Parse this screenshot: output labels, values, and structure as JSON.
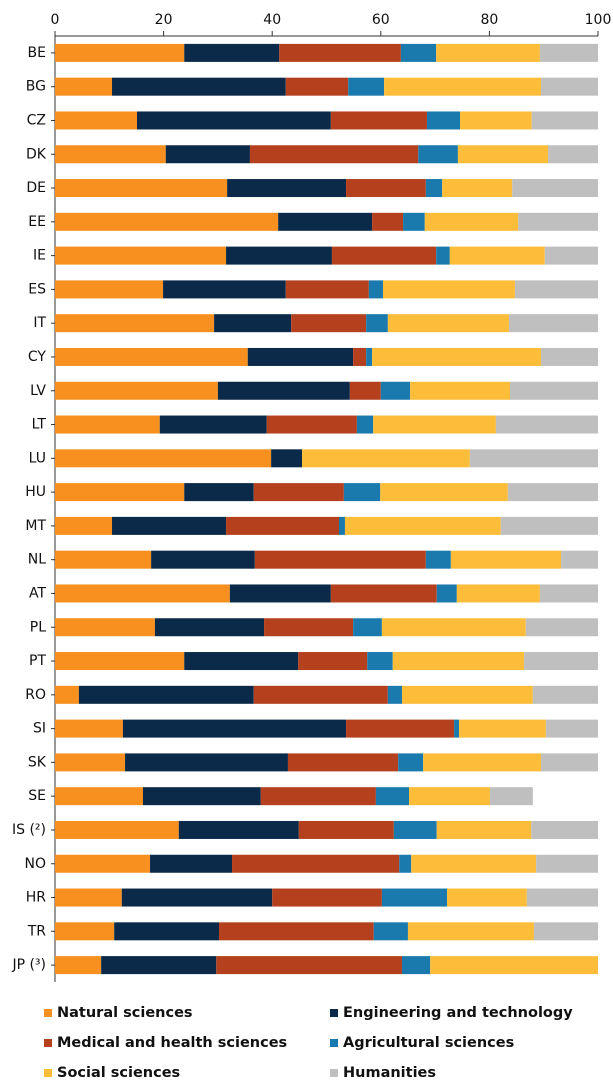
{
  "chart_data": {
    "type": "stacked-barh",
    "categories": [
      "BE",
      "BG",
      "CZ",
      "DK",
      "DE",
      "EE",
      "IE",
      "ES",
      "IT",
      "CY",
      "LV",
      "LT",
      "LU",
      "HU",
      "MT",
      "NL",
      "AT",
      "PL",
      "PT",
      "RO",
      "SI",
      "SK",
      "SE",
      "IS (²)",
      "NO",
      "HR",
      "TR",
      "JP (³)"
    ],
    "series": [
      {
        "name": "Natural sciences",
        "color": "#f7901e",
        "values": [
          23.8,
          10.5,
          15.1,
          20.4,
          31.7,
          41.1,
          31.5,
          19.9,
          29.3,
          35.5,
          30.0,
          19.3,
          39.8,
          23.8,
          10.5,
          17.7,
          32.2,
          18.4,
          23.8,
          4.4,
          12.5,
          12.9,
          16.2,
          22.8,
          17.5,
          12.3,
          10.9,
          8.5
        ]
      },
      {
        "name": "Engineering and technology",
        "color": "#0b2a4a",
        "values": [
          17.5,
          32.0,
          35.7,
          15.5,
          21.9,
          17.3,
          19.5,
          22.6,
          14.2,
          19.4,
          24.3,
          19.7,
          5.7,
          12.8,
          21.0,
          19.1,
          18.6,
          20.1,
          21.0,
          32.2,
          41.1,
          30.0,
          21.7,
          22.1,
          15.1,
          27.7,
          19.3,
          21.2
        ]
      },
      {
        "name": "Medical and health sciences",
        "color": "#b5401d",
        "values": [
          22.4,
          11.5,
          17.7,
          31.0,
          14.7,
          5.7,
          19.2,
          15.3,
          13.8,
          2.4,
          5.7,
          16.6,
          0,
          16.6,
          20.8,
          31.5,
          19.5,
          16.4,
          12.7,
          24.7,
          19.9,
          20.3,
          21.2,
          17.5,
          30.8,
          20.2,
          28.5,
          34.2
        ]
      },
      {
        "name": "Agricultural sciences",
        "color": "#1a7aad",
        "values": [
          6.5,
          6.6,
          6.1,
          7.3,
          3.0,
          4.0,
          2.5,
          2.6,
          4.0,
          1.1,
          5.4,
          3.0,
          0,
          6.7,
          1.1,
          4.6,
          3.7,
          5.3,
          4.7,
          2.6,
          0.9,
          4.6,
          6.1,
          7.9,
          2.2,
          12.0,
          6.3,
          5.2
        ]
      },
      {
        "name": "Social sciences",
        "color": "#fdbd39",
        "values": [
          19.1,
          28.9,
          13.2,
          16.6,
          12.9,
          17.2,
          17.5,
          24.3,
          22.3,
          31.1,
          18.4,
          22.6,
          30.9,
          23.5,
          28.7,
          20.3,
          15.3,
          26.5,
          24.2,
          24.1,
          16.0,
          21.7,
          14.9,
          17.4,
          23.0,
          14.7,
          23.2,
          30.9
        ]
      },
      {
        "name": "Humanities",
        "color": "#bfbfbf",
        "values": [
          10.7,
          10.5,
          12.2,
          9.2,
          15.8,
          14.7,
          9.8,
          15.3,
          16.4,
          10.5,
          16.2,
          18.8,
          23.6,
          16.6,
          17.9,
          6.8,
          10.7,
          13.3,
          13.6,
          12.0,
          9.6,
          10.5,
          7.9,
          12.3,
          11.4,
          13.1,
          11.8,
          0
        ]
      }
    ],
    "xlim": [
      0,
      100
    ],
    "xticks": [
      0,
      20,
      40,
      60,
      80,
      100
    ]
  }
}
